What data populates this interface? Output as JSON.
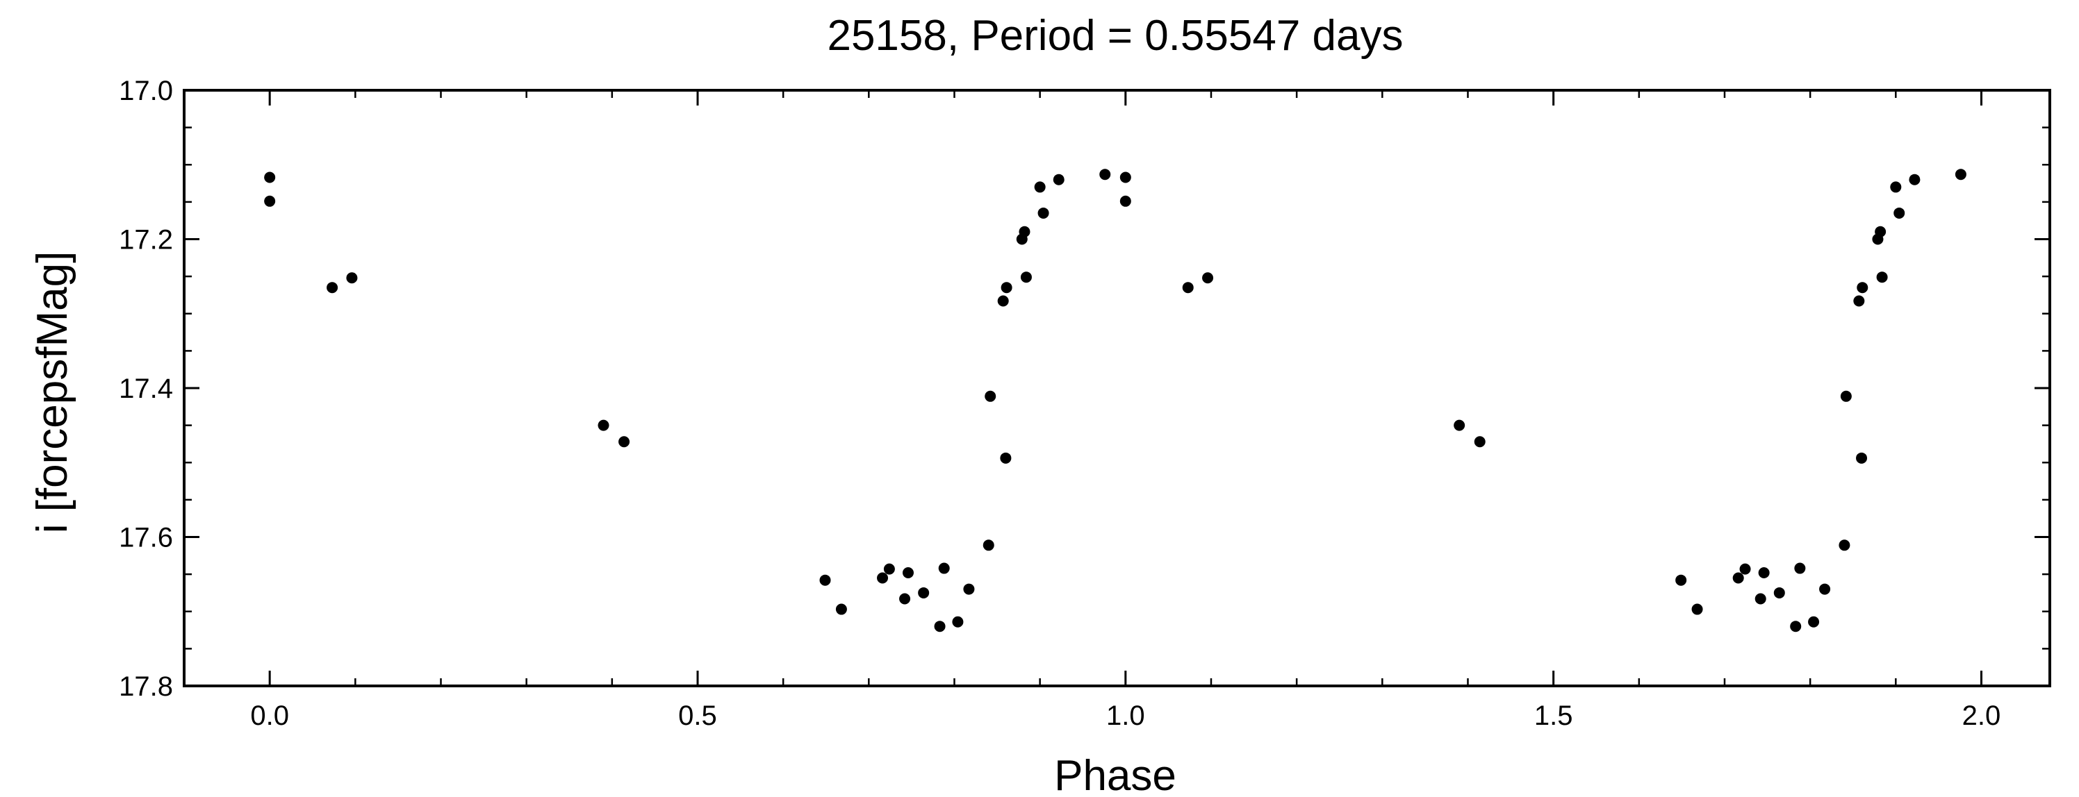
{
  "chart_data": {
    "type": "scatter",
    "title": "25158, Period = 0.55547 days",
    "xlabel": "Phase",
    "ylabel": "i [forcepsfMag]",
    "xlim": [
      -0.1,
      2.08
    ],
    "ylim": [
      17.8,
      17.0
    ],
    "y_inverted": true,
    "grid": false,
    "legend": "none",
    "xticks": [
      {
        "value": 0.0,
        "label": "0.0"
      },
      {
        "value": 0.5,
        "label": "0.5"
      },
      {
        "value": 1.0,
        "label": "1.0"
      },
      {
        "value": 1.5,
        "label": "1.5"
      },
      {
        "value": 2.0,
        "label": "2.0"
      }
    ],
    "yticks": [
      {
        "value": 17.0,
        "label": "17.0"
      },
      {
        "value": 17.2,
        "label": "17.2"
      },
      {
        "value": 17.4,
        "label": "17.4"
      },
      {
        "value": 17.6,
        "label": "17.6"
      },
      {
        "value": 17.8,
        "label": "17.8"
      }
    ],
    "marker_color": "#000000",
    "series": [
      {
        "points": [
          [
            0.0,
            17.117
          ],
          [
            0.0,
            17.149
          ],
          [
            0.073,
            17.265
          ],
          [
            0.096,
            17.252
          ],
          [
            0.39,
            17.45
          ],
          [
            0.414,
            17.472
          ],
          [
            0.649,
            17.658
          ],
          [
            0.668,
            17.697
          ],
          [
            0.716,
            17.655
          ],
          [
            0.724,
            17.643
          ],
          [
            0.742,
            17.683
          ],
          [
            0.746,
            17.648
          ],
          [
            0.764,
            17.675
          ],
          [
            0.783,
            17.72
          ],
          [
            0.788,
            17.642
          ],
          [
            0.804,
            17.714
          ],
          [
            0.817,
            17.67
          ],
          [
            0.84,
            17.611
          ],
          [
            0.842,
            17.411
          ],
          [
            0.86,
            17.494
          ],
          [
            0.857,
            17.283
          ],
          [
            0.861,
            17.265
          ],
          [
            0.879,
            17.2
          ],
          [
            0.882,
            17.19
          ],
          [
            0.884,
            17.251
          ],
          [
            0.9,
            17.13
          ],
          [
            0.904,
            17.165
          ],
          [
            0.922,
            17.12
          ],
          [
            0.976,
            17.113
          ],
          [
            1.0,
            17.117
          ],
          [
            1.0,
            17.149
          ],
          [
            1.073,
            17.265
          ],
          [
            1.096,
            17.252
          ],
          [
            1.39,
            17.45
          ],
          [
            1.414,
            17.472
          ],
          [
            1.649,
            17.658
          ],
          [
            1.668,
            17.697
          ],
          [
            1.716,
            17.655
          ],
          [
            1.724,
            17.643
          ],
          [
            1.742,
            17.683
          ],
          [
            1.746,
            17.648
          ],
          [
            1.764,
            17.675
          ],
          [
            1.783,
            17.72
          ],
          [
            1.788,
            17.642
          ],
          [
            1.804,
            17.714
          ],
          [
            1.817,
            17.67
          ],
          [
            1.84,
            17.611
          ],
          [
            1.842,
            17.411
          ],
          [
            1.86,
            17.494
          ],
          [
            1.857,
            17.283
          ],
          [
            1.861,
            17.265
          ],
          [
            1.879,
            17.2
          ],
          [
            1.882,
            17.19
          ],
          [
            1.884,
            17.251
          ],
          [
            1.9,
            17.13
          ],
          [
            1.904,
            17.165
          ],
          [
            1.922,
            17.12
          ],
          [
            1.976,
            17.113
          ]
        ]
      }
    ]
  }
}
